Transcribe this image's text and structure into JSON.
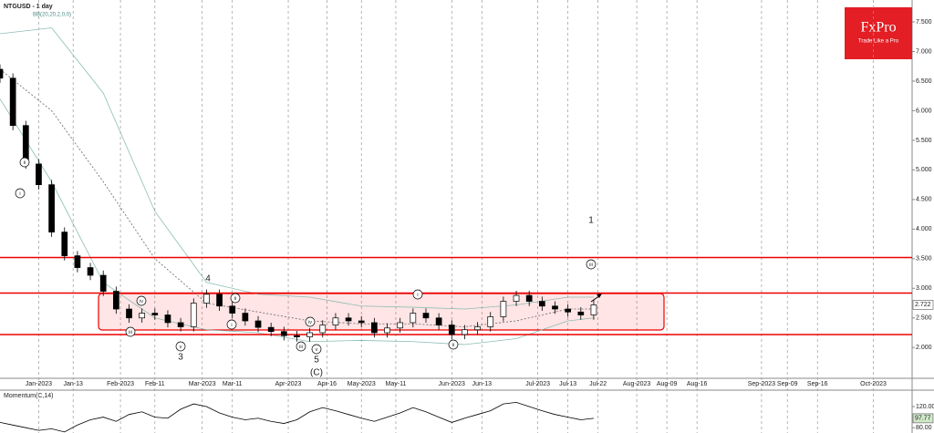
{
  "chart_data": {
    "type": "candlestick",
    "title": "NTGUSD - 1 day",
    "subtitle": "BB(20,20,2,0,0)",
    "logo": {
      "name": "FxPro",
      "tagline": "Trade Like a Pro"
    },
    "x": [
      0,
      3,
      6,
      9,
      12,
      15,
      18,
      21,
      24,
      27,
      30,
      33,
      36,
      39,
      42,
      45,
      48,
      51,
      54,
      57,
      60,
      63,
      66,
      69,
      72,
      75,
      78,
      81,
      84,
      87,
      90,
      93,
      96,
      99,
      102,
      105,
      108,
      111,
      114,
      117,
      120,
      123,
      126,
      129,
      132,
      135,
      138
    ],
    "open": [
      6.7,
      6.55,
      5.75,
      5.1,
      4.75,
      3.95,
      3.55,
      3.35,
      3.22,
      2.95,
      2.65,
      2.5,
      2.58,
      2.55,
      2.42,
      2.35,
      2.75,
      2.9,
      2.7,
      2.58,
      2.45,
      2.34,
      2.27,
      2.2,
      2.18,
      2.25,
      2.38,
      2.5,
      2.45,
      2.42,
      2.25,
      2.33,
      2.42,
      2.58,
      2.5,
      2.38,
      2.22,
      2.3,
      2.35,
      2.52,
      2.78,
      2.88,
      2.78,
      2.7,
      2.65,
      2.6,
      2.55
    ],
    "high": [
      6.78,
      6.63,
      5.83,
      5.18,
      4.83,
      4.03,
      3.63,
      3.43,
      3.3,
      3.03,
      2.73,
      2.66,
      2.66,
      2.63,
      2.5,
      2.83,
      2.98,
      2.98,
      2.78,
      2.66,
      2.53,
      2.42,
      2.35,
      2.28,
      2.33,
      2.46,
      2.58,
      2.58,
      2.53,
      2.5,
      2.41,
      2.5,
      2.66,
      2.66,
      2.58,
      2.46,
      2.38,
      2.43,
      2.6,
      2.86,
      2.96,
      2.96,
      2.86,
      2.78,
      2.73,
      2.68,
      2.8
    ],
    "low": [
      6.47,
      5.67,
      5.02,
      4.67,
      3.87,
      3.47,
      3.27,
      3.14,
      2.87,
      2.57,
      2.42,
      2.42,
      2.47,
      2.34,
      2.27,
      2.27,
      2.67,
      2.62,
      2.5,
      2.37,
      2.26,
      2.19,
      2.12,
      2.1,
      2.1,
      2.17,
      2.3,
      2.37,
      2.34,
      2.17,
      2.17,
      2.25,
      2.34,
      2.42,
      2.3,
      2.14,
      2.14,
      2.22,
      2.27,
      2.44,
      2.7,
      2.7,
      2.62,
      2.57,
      2.52,
      2.47,
      2.47
    ],
    "close": [
      6.55,
      5.75,
      5.1,
      4.75,
      3.95,
      3.55,
      3.35,
      3.22,
      2.95,
      2.65,
      2.5,
      2.58,
      2.55,
      2.42,
      2.35,
      2.75,
      2.9,
      2.7,
      2.58,
      2.45,
      2.34,
      2.27,
      2.2,
      2.18,
      2.25,
      2.38,
      2.5,
      2.45,
      2.42,
      2.25,
      2.33,
      2.42,
      2.58,
      2.5,
      2.38,
      2.22,
      2.3,
      2.35,
      2.52,
      2.78,
      2.88,
      2.78,
      2.7,
      2.65,
      2.6,
      2.55,
      2.72
    ],
    "last_price": 2.722,
    "bands": {
      "x": [
        0,
        12,
        24,
        36,
        48,
        60,
        72,
        84,
        96,
        108,
        120,
        132,
        138
      ],
      "upper": [
        7.3,
        7.4,
        6.3,
        4.3,
        3.1,
        2.9,
        2.85,
        2.7,
        2.68,
        2.65,
        2.72,
        2.85,
        2.85
      ],
      "middle": [
        6.7,
        6.0,
        4.8,
        3.5,
        2.75,
        2.6,
        2.45,
        2.4,
        2.4,
        2.35,
        2.45,
        2.65,
        2.65
      ],
      "lower": [
        6.2,
        4.8,
        3.1,
        2.5,
        2.3,
        2.25,
        2.1,
        2.12,
        2.1,
        2.05,
        2.15,
        2.45,
        2.5
      ]
    },
    "levels": [
      3.52,
      2.92,
      2.22
    ],
    "wave_numbers": [
      "1",
      "3",
      "4",
      "5",
      "(C)"
    ],
    "wave_circles": [
      "ii",
      "i",
      "iv",
      "iii",
      "v",
      "ii",
      "i",
      "iv",
      "iii",
      "v",
      "i",
      "ii",
      "iii"
    ],
    "xlim": [
      0,
      212
    ],
    "xticks": [
      {
        "value": 9,
        "label": "Jan-2023"
      },
      {
        "value": 17,
        "label": "Jan-13"
      },
      {
        "value": 28,
        "label": "Feb-2023"
      },
      {
        "value": 36,
        "label": "Feb-11"
      },
      {
        "value": 47,
        "label": "Mar-2023"
      },
      {
        "value": 54,
        "label": "Mar-11"
      },
      {
        "value": 67,
        "label": "Apr-2023"
      },
      {
        "value": 76,
        "label": "Apr-16"
      },
      {
        "value": 84,
        "label": "May-2023"
      },
      {
        "value": 92,
        "label": "May-11"
      },
      {
        "value": 105,
        "label": "Jun-2023"
      },
      {
        "value": 112,
        "label": "Jun-13"
      },
      {
        "value": 125,
        "label": "Jul-2023"
      },
      {
        "value": 132,
        "label": "Jul-13"
      },
      {
        "value": 139,
        "label": "Jul-22"
      },
      {
        "value": 148,
        "label": "Aug-2023"
      },
      {
        "value": 155,
        "label": "Aug-09"
      },
      {
        "value": 162,
        "label": "Aug-16"
      },
      {
        "value": 177,
        "label": "Sep-2023"
      },
      {
        "value": 183,
        "label": "Sep-09"
      },
      {
        "value": 190,
        "label": "Sep-16"
      },
      {
        "value": 203,
        "label": "Oct-2023"
      }
    ],
    "ylim": [
      1.48,
      7.87
    ],
    "yticks": [
      {
        "value": 2,
        "label": "2.000"
      },
      {
        "value": 2.5,
        "label": "2.500"
      },
      {
        "value": 3,
        "label": "3.000"
      },
      {
        "value": 3.5,
        "label": "3.500"
      },
      {
        "value": 4,
        "label": "4.000"
      },
      {
        "value": 4.5,
        "label": "4.500"
      },
      {
        "value": 5,
        "label": "5.000"
      },
      {
        "value": 5.5,
        "label": "5.500"
      },
      {
        "value": 6,
        "label": "6.000"
      },
      {
        "value": 6.5,
        "label": "6.500"
      },
      {
        "value": 7,
        "label": "7.000"
      },
      {
        "value": 7.5,
        "label": "7.500"
      }
    ],
    "grid": true,
    "momentum": {
      "label": "Momentum(C,14)",
      "values": [
        90,
        85,
        80,
        75,
        78,
        72,
        85,
        95,
        100,
        92,
        105,
        110,
        100,
        98,
        115,
        125,
        120,
        108,
        100,
        95,
        98,
        92,
        88,
        95,
        110,
        118,
        112,
        105,
        98,
        92,
        100,
        108,
        118,
        110,
        100,
        90,
        98,
        105,
        112,
        125,
        128,
        120,
        112,
        105,
        100,
        95,
        97.77
      ],
      "ylim": [
        70,
        151
      ],
      "yticks": [
        {
          "value": 120,
          "label": "120.00"
        },
        {
          "value": 80,
          "label": "80.00"
        }
      ],
      "last": {
        "value": 97.77,
        "label": "97.77"
      }
    }
  }
}
